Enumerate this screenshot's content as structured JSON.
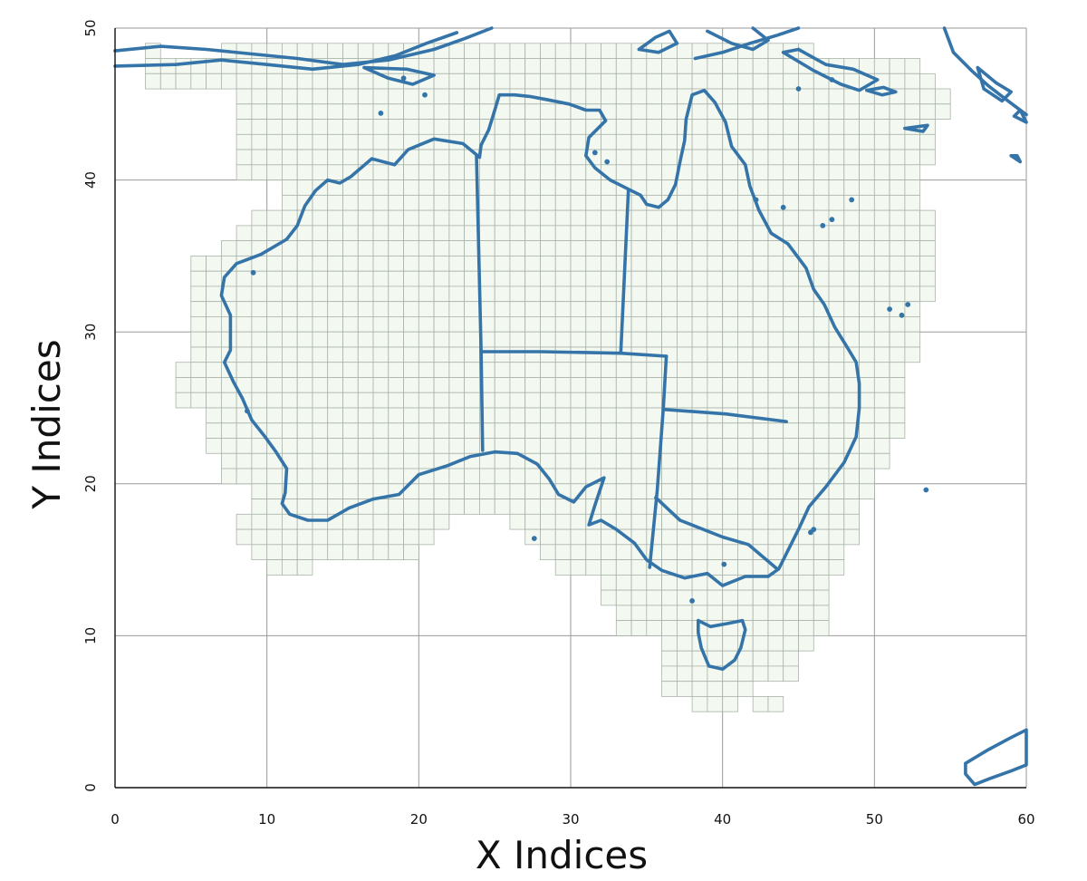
{
  "chart_data": {
    "type": "map",
    "xlabel": "X Indices",
    "ylabel": "Y Indices",
    "xlim": [
      0,
      60
    ],
    "ylim": [
      0,
      50
    ],
    "x_ticks": [
      0,
      10,
      20,
      30,
      40,
      50,
      60
    ],
    "y_ticks": [
      0,
      10,
      20,
      30,
      40,
      50
    ],
    "grid": true,
    "cell_color": "#f3f9f1",
    "cell_edge_color": "#a9b3a9",
    "outline_color": "#3574a8",
    "grid_rows": [
      [
        48,
        2,
        3
      ],
      [
        48,
        7,
        46
      ],
      [
        47,
        2,
        53
      ],
      [
        46,
        2,
        54
      ],
      [
        45,
        8,
        55
      ],
      [
        44,
        8,
        55
      ],
      [
        43,
        8,
        54
      ],
      [
        42,
        8,
        54
      ],
      [
        41,
        8,
        54
      ],
      [
        40,
        8,
        53
      ],
      [
        39,
        11,
        53
      ],
      [
        38,
        11,
        53
      ],
      [
        37,
        9,
        54
      ],
      [
        36,
        8,
        54
      ],
      [
        35,
        7,
        54
      ],
      [
        34,
        5,
        54
      ],
      [
        33,
        5,
        54
      ],
      [
        32,
        5,
        54
      ],
      [
        31,
        5,
        53
      ],
      [
        30,
        5,
        53
      ],
      [
        29,
        5,
        53
      ],
      [
        28,
        5,
        53
      ],
      [
        27,
        4,
        52
      ],
      [
        26,
        4,
        52
      ],
      [
        25,
        4,
        52
      ],
      [
        24,
        6,
        52
      ],
      [
        23,
        6,
        52
      ],
      [
        22,
        6,
        51
      ],
      [
        21,
        7,
        51
      ],
      [
        20,
        7,
        50
      ],
      [
        19,
        9,
        50
      ],
      [
        18,
        9,
        49
      ],
      [
        17,
        8,
        22
      ],
      [
        17,
        26,
        49
      ],
      [
        16,
        8,
        21
      ],
      [
        16,
        27,
        49
      ],
      [
        15,
        9,
        20
      ],
      [
        15,
        28,
        48
      ],
      [
        14,
        10,
        13
      ],
      [
        14,
        29,
        48
      ],
      [
        13,
        32,
        47
      ],
      [
        12,
        32,
        47
      ],
      [
        11,
        33,
        47
      ],
      [
        10,
        33,
        47
      ],
      [
        9,
        36,
        46
      ],
      [
        8,
        36,
        45
      ],
      [
        7,
        36,
        45
      ],
      [
        6,
        36,
        42
      ],
      [
        5,
        38,
        41
      ],
      [
        5,
        42,
        44
      ]
    ],
    "coastline_xy": [
      [
        24.0,
        41.5
      ],
      [
        22.9,
        42.4
      ],
      [
        21.0,
        42.7
      ],
      [
        19.3,
        42.0
      ],
      [
        18.4,
        41.0
      ],
      [
        16.9,
        41.4
      ],
      [
        15.5,
        40.2
      ],
      [
        14.8,
        39.8
      ],
      [
        14.0,
        40.0
      ],
      [
        13.2,
        39.3
      ],
      [
        12.5,
        38.3
      ],
      [
        12.0,
        37.0
      ],
      [
        11.3,
        36.1
      ],
      [
        9.6,
        35.1
      ],
      [
        8.0,
        34.5
      ],
      [
        7.2,
        33.6
      ],
      [
        7.0,
        32.4
      ],
      [
        7.6,
        31.1
      ],
      [
        7.6,
        30.0
      ],
      [
        7.6,
        28.8
      ],
      [
        7.2,
        28.0
      ],
      [
        7.8,
        26.7
      ],
      [
        8.4,
        25.6
      ],
      [
        9.0,
        24.2
      ],
      [
        9.8,
        23.2
      ],
      [
        10.6,
        22.1
      ],
      [
        11.3,
        21.0
      ],
      [
        11.2,
        19.4
      ],
      [
        11.0,
        18.7
      ],
      [
        11.5,
        18.0
      ],
      [
        12.7,
        17.6
      ],
      [
        14.0,
        17.6
      ],
      [
        15.4,
        18.4
      ],
      [
        17.0,
        19.0
      ],
      [
        18.7,
        19.3
      ],
      [
        20.0,
        20.6
      ],
      [
        21.9,
        21.2
      ],
      [
        23.4,
        21.8
      ],
      [
        25.0,
        22.1
      ],
      [
        26.5,
        22.0
      ],
      [
        27.8,
        21.3
      ],
      [
        28.6,
        20.3
      ],
      [
        29.2,
        19.3
      ],
      [
        30.2,
        18.8
      ],
      [
        31.0,
        19.8
      ],
      [
        32.2,
        20.4
      ],
      [
        31.6,
        18.6
      ],
      [
        31.2,
        17.3
      ],
      [
        32.0,
        17.6
      ],
      [
        33.0,
        17.0
      ],
      [
        34.2,
        16.1
      ],
      [
        35.0,
        15.0
      ],
      [
        36.0,
        14.3
      ],
      [
        37.5,
        13.8
      ],
      [
        39.0,
        14.1
      ],
      [
        40.0,
        13.3
      ],
      [
        41.5,
        13.9
      ],
      [
        43.0,
        13.9
      ],
      [
        43.7,
        14.4
      ],
      [
        45.0,
        17.0
      ],
      [
        45.7,
        18.5
      ],
      [
        46.8,
        19.8
      ],
      [
        48.0,
        21.4
      ],
      [
        48.8,
        23.1
      ],
      [
        49.0,
        25.0
      ],
      [
        49.0,
        26.6
      ],
      [
        48.8,
        28.0
      ],
      [
        48.2,
        29.0
      ],
      [
        47.4,
        30.3
      ],
      [
        46.7,
        31.8
      ],
      [
        46.0,
        32.8
      ],
      [
        45.5,
        34.2
      ],
      [
        44.3,
        35.8
      ],
      [
        43.2,
        36.5
      ],
      [
        42.4,
        38.0
      ],
      [
        41.8,
        39.6
      ],
      [
        41.5,
        41.0
      ],
      [
        40.6,
        42.2
      ],
      [
        40.2,
        43.8
      ],
      [
        39.5,
        45.1
      ],
      [
        38.8,
        45.9
      ],
      [
        38.0,
        45.6
      ],
      [
        37.6,
        44.0
      ],
      [
        37.5,
        42.6
      ],
      [
        37.2,
        41.2
      ],
      [
        36.9,
        39.7
      ],
      [
        36.4,
        38.7
      ],
      [
        35.8,
        38.2
      ],
      [
        35.0,
        38.4
      ],
      [
        34.6,
        39.0
      ],
      [
        33.8,
        39.4
      ],
      [
        32.6,
        40.0
      ],
      [
        31.6,
        40.8
      ],
      [
        31.0,
        41.6
      ],
      [
        31.2,
        42.8
      ],
      [
        32.3,
        43.9
      ],
      [
        31.9,
        44.6
      ],
      [
        31.0,
        44.6
      ],
      [
        29.9,
        45.0
      ],
      [
        28.4,
        45.3
      ],
      [
        27.3,
        45.5
      ],
      [
        26.3,
        45.6
      ],
      [
        25.3,
        45.6
      ],
      [
        25.0,
        44.6
      ],
      [
        24.6,
        43.3
      ],
      [
        24.1,
        42.3
      ],
      [
        24.0,
        41.5
      ]
    ],
    "state_borders_xy": [
      [
        [
          23.8,
          41.6
        ],
        [
          24.1,
          28.8
        ],
        [
          24.2,
          22.2
        ]
      ],
      [
        [
          24.1,
          28.7
        ],
        [
          28.0,
          28.7
        ],
        [
          33.3,
          28.6
        ],
        [
          36.3,
          28.4
        ]
      ],
      [
        [
          33.8,
          39.3
        ],
        [
          33.3,
          28.6
        ]
      ],
      [
        [
          36.3,
          28.4
        ],
        [
          36.1,
          25.0
        ],
        [
          35.7,
          19.6
        ],
        [
          35.2,
          14.5
        ]
      ],
      [
        [
          36.1,
          24.9
        ],
        [
          40.2,
          24.6
        ],
        [
          44.2,
          24.1
        ]
      ],
      [
        [
          35.6,
          19.1
        ],
        [
          37.2,
          17.6
        ],
        [
          40.0,
          16.5
        ],
        [
          41.7,
          16.0
        ],
        [
          43.6,
          14.4
        ]
      ]
    ],
    "tasmania_xy": [
      [
        38.4,
        11.0
      ],
      [
        39.2,
        10.6
      ],
      [
        40.3,
        10.8
      ],
      [
        41.3,
        11.0
      ],
      [
        41.5,
        10.4
      ],
      [
        41.2,
        9.2
      ],
      [
        40.8,
        8.4
      ],
      [
        40.0,
        7.8
      ],
      [
        39.1,
        8.0
      ],
      [
        38.6,
        9.2
      ],
      [
        38.4,
        10.2
      ],
      [
        38.4,
        11.0
      ]
    ],
    "southeast_island_xy": [
      [
        56.0,
        1.6
      ],
      [
        57.5,
        2.5
      ],
      [
        59.0,
        3.3
      ],
      [
        60.0,
        3.8
      ],
      [
        60.0,
        1.5
      ],
      [
        59.0,
        1.1
      ],
      [
        57.6,
        0.6
      ],
      [
        56.6,
        0.2
      ],
      [
        56.0,
        0.9
      ],
      [
        56.0,
        1.6
      ]
    ],
    "northern_landmasses_xy": [
      [
        [
          0.0,
          48.5
        ],
        [
          3.0,
          48.8
        ],
        [
          6.0,
          48.6
        ],
        [
          9.0,
          48.3
        ],
        [
          12.0,
          48.0
        ],
        [
          15.0,
          47.6
        ],
        [
          18.0,
          47.9
        ],
        [
          21.0,
          48.6
        ],
        [
          23.0,
          49.3
        ],
        [
          24.8,
          50.0
        ]
      ],
      [
        [
          0.0,
          47.5
        ],
        [
          4.0,
          47.6
        ],
        [
          7.0,
          47.9
        ],
        [
          10.0,
          47.6
        ],
        [
          13.0,
          47.3
        ],
        [
          16.0,
          47.6
        ],
        [
          18.5,
          48.2
        ],
        [
          20.5,
          49.0
        ],
        [
          22.5,
          49.7
        ]
      ],
      [
        [
          34.5,
          48.6
        ],
        [
          35.6,
          49.4
        ],
        [
          36.5,
          49.8
        ],
        [
          37.0,
          49.0
        ],
        [
          35.8,
          48.4
        ],
        [
          34.5,
          48.6
        ]
      ],
      [
        [
          38.2,
          48.0
        ],
        [
          40.0,
          48.4
        ],
        [
          41.8,
          49.0
        ],
        [
          43.5,
          49.5
        ],
        [
          45.0,
          50.0
        ]
      ],
      [
        [
          44.0,
          48.4
        ],
        [
          46.0,
          47.2
        ],
        [
          47.8,
          46.3
        ],
        [
          49.0,
          45.9
        ],
        [
          50.2,
          46.6
        ],
        [
          48.6,
          47.3
        ],
        [
          46.8,
          47.6
        ],
        [
          45.0,
          48.6
        ],
        [
          44.0,
          48.4
        ]
      ],
      [
        [
          39.0,
          49.8
        ],
        [
          40.6,
          49.0
        ],
        [
          42.0,
          48.6
        ],
        [
          43.0,
          49.2
        ],
        [
          42.0,
          50.0
        ]
      ],
      [
        [
          54.6,
          50.0
        ],
        [
          55.2,
          48.4
        ],
        [
          56.4,
          47.2
        ],
        [
          57.5,
          46.2
        ],
        [
          58.8,
          45.2
        ],
        [
          60.0,
          44.3
        ]
      ],
      [
        [
          56.8,
          47.4
        ],
        [
          58.0,
          46.4
        ],
        [
          59.0,
          45.8
        ],
        [
          58.4,
          45.2
        ],
        [
          57.2,
          46.0
        ],
        [
          56.8,
          47.4
        ]
      ],
      [
        [
          60.0,
          43.8
        ],
        [
          59.6,
          44.6
        ],
        [
          59.2,
          44.2
        ],
        [
          60.0,
          43.8
        ]
      ],
      [
        [
          16.4,
          47.4
        ],
        [
          18.0,
          46.7
        ],
        [
          19.6,
          46.3
        ],
        [
          21.0,
          46.9
        ],
        [
          19.2,
          47.3
        ],
        [
          16.4,
          47.4
        ]
      ],
      [
        [
          49.5,
          45.9
        ],
        [
          50.6,
          46.1
        ],
        [
          51.4,
          45.8
        ],
        [
          50.5,
          45.6
        ],
        [
          49.5,
          45.9
        ]
      ],
      [
        [
          52.0,
          43.4
        ],
        [
          53.5,
          43.6
        ],
        [
          53.2,
          43.2
        ],
        [
          52.0,
          43.4
        ]
      ],
      [
        [
          59.0,
          41.6
        ],
        [
          59.6,
          41.2
        ],
        [
          59.4,
          41.6
        ],
        [
          59.0,
          41.6
        ]
      ]
    ],
    "islets_xy": [
      [
        48.5,
        38.7
      ],
      [
        47.2,
        37.4
      ],
      [
        46.6,
        37.0
      ],
      [
        44.0,
        38.2
      ],
      [
        42.2,
        38.7
      ],
      [
        52.2,
        31.8
      ],
      [
        51.0,
        31.5
      ],
      [
        51.8,
        31.1
      ],
      [
        53.4,
        19.6
      ],
      [
        46.0,
        17.0
      ],
      [
        45.8,
        16.8
      ],
      [
        38.0,
        12.3
      ],
      [
        40.1,
        14.7
      ],
      [
        27.6,
        16.4
      ],
      [
        17.5,
        44.4
      ],
      [
        8.7,
        24.8
      ],
      [
        9.1,
        33.9
      ],
      [
        31.6,
        41.8
      ],
      [
        32.4,
        41.2
      ],
      [
        20.4,
        45.6
      ],
      [
        19.0,
        46.7
      ],
      [
        45.0,
        46.0
      ],
      [
        47.2,
        46.6
      ]
    ]
  }
}
